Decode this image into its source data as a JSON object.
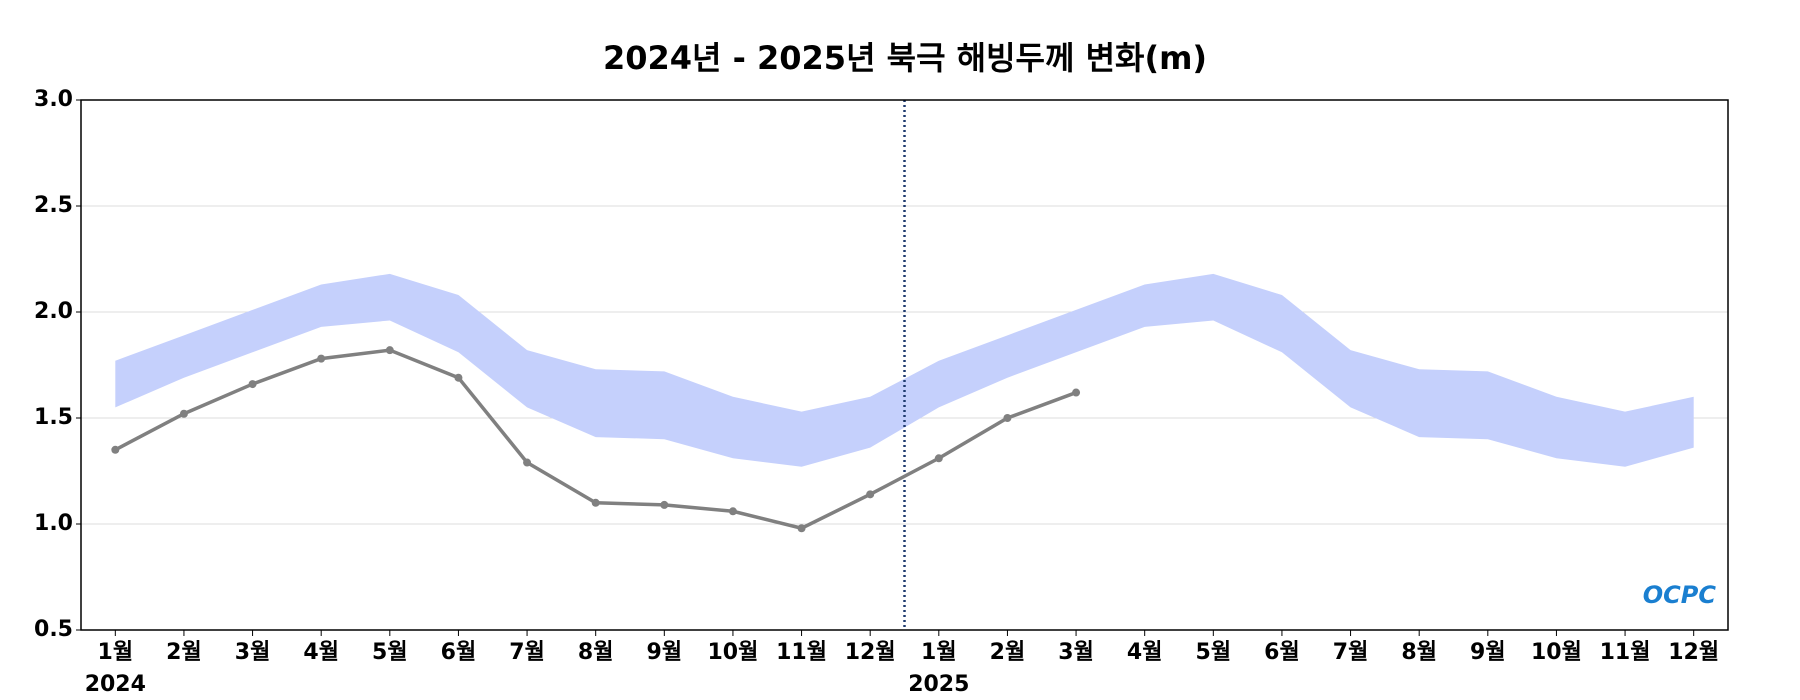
{
  "chart_data": {
    "type": "line",
    "title": "2024년 - 2025년 북극 해빙두께 변화(m)",
    "categories": [
      "1월",
      "2월",
      "3월",
      "4월",
      "5월",
      "6월",
      "7월",
      "8월",
      "9월",
      "10월",
      "11월",
      "12월",
      "1월",
      "2월",
      "3월",
      "4월",
      "5월",
      "6월",
      "7월",
      "8월",
      "9월",
      "10월",
      "11월",
      "12월"
    ],
    "years": [
      {
        "index": 0,
        "label": "2024"
      },
      {
        "index": 12,
        "label": "2025"
      }
    ],
    "series": [
      {
        "color": "#808080",
        "values": [
          1.35,
          1.52,
          1.66,
          1.78,
          1.82,
          1.69,
          1.29,
          1.1,
          1.09,
          1.06,
          0.98,
          1.14,
          1.31,
          1.5,
          1.62,
          null,
          null,
          null,
          null,
          null,
          null,
          null,
          null,
          null
        ]
      }
    ],
    "band": {
      "color": "#c5d0fc",
      "upper": [
        1.77,
        1.89,
        2.01,
        2.13,
        2.18,
        2.08,
        1.82,
        1.73,
        1.72,
        1.6,
        1.53,
        1.6,
        1.77,
        1.89,
        2.01,
        2.13,
        2.18,
        2.08,
        1.82,
        1.73,
        1.72,
        1.6,
        1.53,
        1.6
      ],
      "lower": [
        1.55,
        1.69,
        1.81,
        1.93,
        1.96,
        1.81,
        1.55,
        1.41,
        1.4,
        1.31,
        1.27,
        1.36,
        1.55,
        1.69,
        1.81,
        1.93,
        1.96,
        1.81,
        1.55,
        1.41,
        1.4,
        1.31,
        1.27,
        1.36
      ]
    },
    "ylim": [
      0.5,
      3.0
    ],
    "yticks": [
      {
        "value": 0.5,
        "label": "0.5"
      },
      {
        "value": 1,
        "label": "1.0"
      },
      {
        "value": 1.5,
        "label": "1.5"
      },
      {
        "value": 2,
        "label": "2.0"
      },
      {
        "value": 2.5,
        "label": "2.5"
      },
      {
        "value": 3,
        "label": "3.0"
      }
    ],
    "grid": true,
    "logo": "OCPC"
  }
}
